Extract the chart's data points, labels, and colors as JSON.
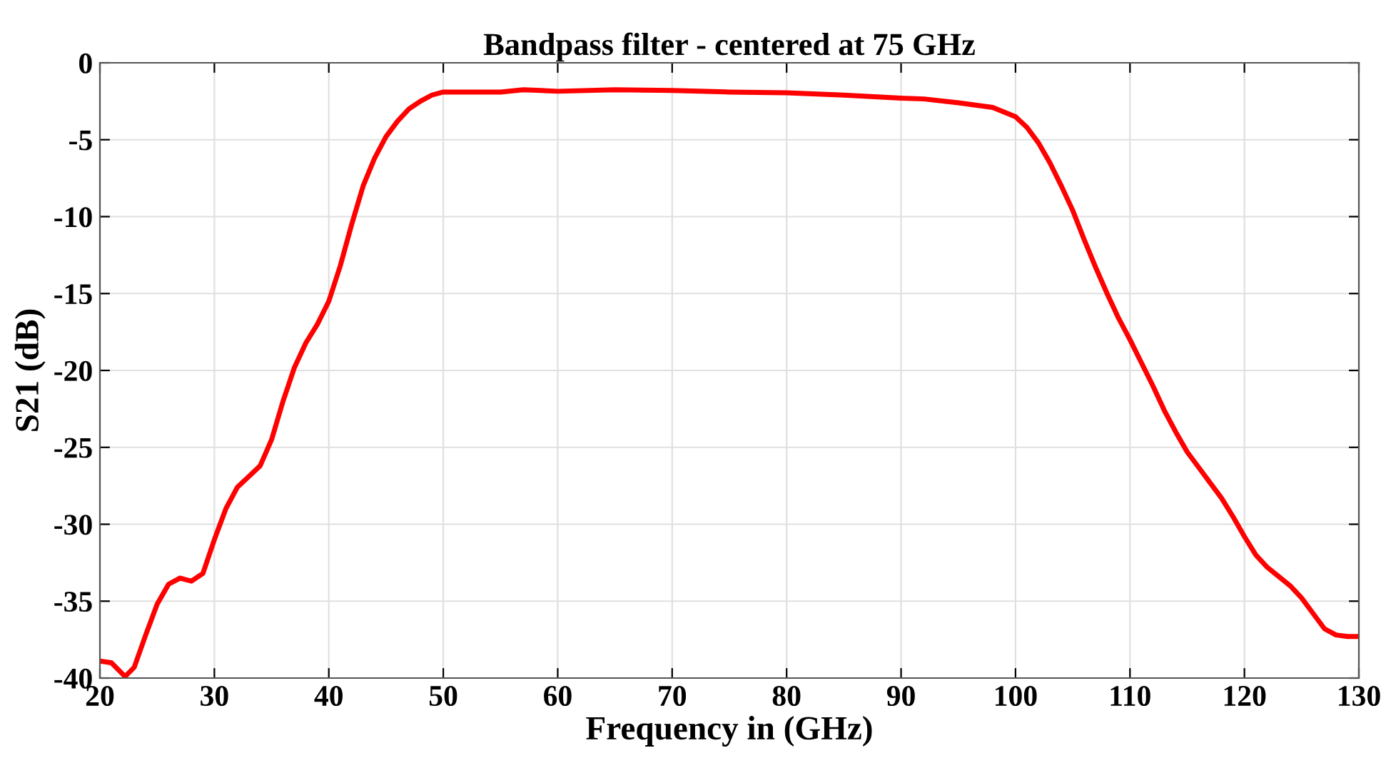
{
  "chart_data": {
    "type": "line",
    "title": "Bandpass filter - centered at 75 GHz",
    "xlabel": "Frequency in (GHz)",
    "ylabel": "S21 (dB)",
    "series": [
      {
        "color": "#ff0000",
        "x": [
          20,
          21,
          22.2,
          23,
          24,
          25,
          26,
          27,
          28,
          29,
          30,
          31,
          32,
          33,
          34,
          35,
          36,
          37,
          38,
          39,
          40,
          41,
          42,
          43,
          44,
          45,
          46,
          47,
          48,
          49,
          50,
          52,
          55,
          57,
          60,
          65,
          70,
          75,
          80,
          85,
          90,
          92,
          95,
          98,
          100,
          101,
          102,
          103,
          104,
          105,
          106,
          107,
          108,
          109,
          110,
          111,
          112,
          113,
          114,
          115,
          116,
          117,
          118,
          119,
          120,
          121,
          122,
          123,
          124,
          125,
          126,
          127,
          128,
          129,
          130
        ],
        "values": [
          -38.9,
          -39.0,
          -39.9,
          -39.3,
          -37.2,
          -35.2,
          -33.9,
          -33.5,
          -33.7,
          -33.2,
          -31,
          -29,
          -27.6,
          -26.9,
          -26.2,
          -24.5,
          -22,
          -19.8,
          -18.2,
          -17,
          -15.5,
          -13.2,
          -10.5,
          -8.0,
          -6.2,
          -4.8,
          -3.8,
          -3.0,
          -2.5,
          -2.1,
          -1.9,
          -1.9,
          -1.9,
          -1.75,
          -1.85,
          -1.75,
          -1.8,
          -1.9,
          -1.95,
          -2.1,
          -2.3,
          -2.35,
          -2.6,
          -2.9,
          -3.5,
          -4.2,
          -5.2,
          -6.5,
          -8.0,
          -9.6,
          -11.5,
          -13.3,
          -15.0,
          -16.6,
          -18.0,
          -19.5,
          -21,
          -22.6,
          -24,
          -25.3,
          -26.3,
          -27.3,
          -28.3,
          -29.5,
          -30.8,
          -32,
          -32.8,
          -33.4,
          -34.0,
          -34.8,
          -35.8,
          -36.8,
          -37.2,
          -37.3,
          -37.3
        ]
      }
    ],
    "xlim": [
      20,
      130
    ],
    "xticks": [
      20,
      30,
      40,
      50,
      60,
      70,
      80,
      90,
      100,
      110,
      120,
      130
    ],
    "ylim": [
      -40,
      0
    ],
    "yticks": [
      -40,
      -35,
      -30,
      -25,
      -20,
      -15,
      -10,
      -5,
      0
    ],
    "grid": true,
    "legend": false,
    "marker": "none",
    "line_style": "solid"
  }
}
